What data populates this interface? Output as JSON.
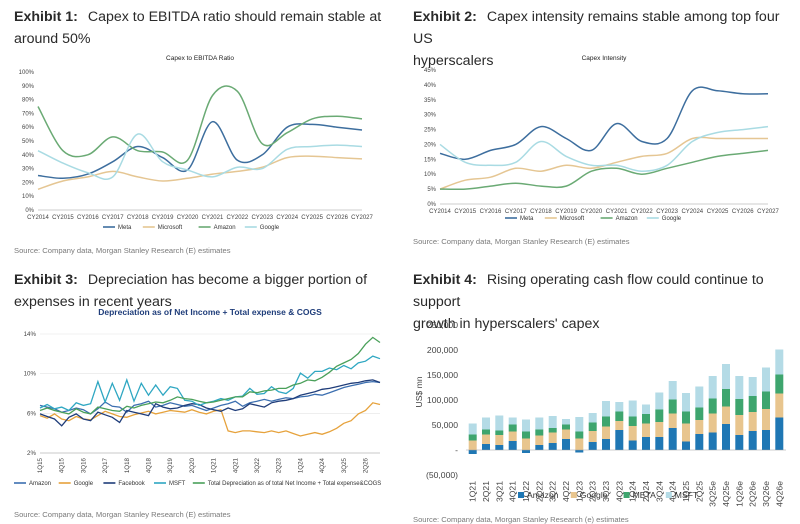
{
  "exhibits": [
    {
      "label": "Exhibit 1:",
      "title_line1": "Capex to EBITDA ratio should remain stable at",
      "title_line2": "around 50%",
      "source": "Source: Company data, Morgan Stanley Research (E) estimates"
    },
    {
      "label": "Exhibit 2:",
      "title_line1": "Capex intensity remains stable among top four US",
      "title_line2": "hyperscalers",
      "source": "Source: Company data, Morgan Stanley Research (E) estimates"
    },
    {
      "label": "Exhibit 3:",
      "title_line1": "Depreciation has become a bigger portion of",
      "title_line2": "expenses in recent years",
      "source": "Source: Company data, Morgan Stanley Research (E) estimates"
    },
    {
      "label": "Exhibit 4:",
      "title_line1": "Rising operating cash flow could continue to support",
      "title_line2": "growth in hyperscalers' capex",
      "source": "Source: Company data, Morgan Stanley Research (e) estimates"
    }
  ],
  "chart_data": [
    {
      "type": "line",
      "title": "Capex to EBITDA Ratio",
      "categories": [
        "CY2014",
        "CY2015",
        "CY2016",
        "CY2017",
        "CY2018",
        "CY2019",
        "CY2020",
        "CY2021",
        "CY2022",
        "CY2023",
        "CY2024",
        "CY2025",
        "CY2026",
        "CY2027"
      ],
      "y_ticks": [
        "0%",
        "10%",
        "20%",
        "30%",
        "40%",
        "50%",
        "60%",
        "70%",
        "80%",
        "90%",
        "100%"
      ],
      "ylim": [
        0,
        100
      ],
      "series": [
        {
          "name": "Meta",
          "color": "#3d6e9e",
          "values": [
            25,
            23,
            26,
            35,
            46,
            38,
            29,
            64,
            36,
            40,
            60,
            62,
            60,
            58
          ]
        },
        {
          "name": "Microsoft",
          "color": "#e5c693",
          "values": [
            15,
            21,
            24,
            28,
            24,
            21,
            23,
            26,
            28,
            31,
            38,
            39,
            38,
            37
          ]
        },
        {
          "name": "Amazon",
          "color": "#6aaa74",
          "values": [
            75,
            43,
            40,
            53,
            43,
            42,
            36,
            83,
            86,
            48,
            56,
            66,
            68,
            66
          ]
        },
        {
          "name": "Google",
          "color": "#a9dbe3",
          "values": [
            43,
            34,
            27,
            24,
            55,
            35,
            29,
            24,
            31,
            30,
            44,
            46,
            47,
            46
          ]
        }
      ]
    },
    {
      "type": "line",
      "title": "Capex Intensity",
      "categories": [
        "CY2014",
        "CY2015",
        "CY2016",
        "CY2017",
        "CY2018",
        "CY2019",
        "CY2020",
        "CY2021",
        "CY2022",
        "CY2023",
        "CY2024",
        "CY2025",
        "CY2026",
        "CY2027"
      ],
      "y_ticks": [
        "0%",
        "5%",
        "10%",
        "15%",
        "20%",
        "25%",
        "30%",
        "35%",
        "40%",
        "45%"
      ],
      "ylim": [
        0,
        45
      ],
      "series": [
        {
          "name": "Meta",
          "color": "#3d6e9e",
          "values": [
            17,
            15,
            18,
            20,
            26,
            22,
            18,
            27,
            21,
            22,
            38,
            38,
            37,
            37
          ]
        },
        {
          "name": "Microsoft",
          "color": "#e5c693",
          "values": [
            5,
            8,
            9,
            12,
            11,
            13,
            12,
            14,
            16,
            17,
            22,
            22,
            22,
            22
          ]
        },
        {
          "name": "Amazon",
          "color": "#6aaa74",
          "values": [
            5,
            5,
            6,
            7,
            6,
            6,
            11,
            12,
            10,
            12,
            14,
            16,
            17,
            18
          ]
        },
        {
          "name": "Google",
          "color": "#a9dbe3",
          "values": [
            20,
            14,
            13,
            14,
            21,
            16,
            13,
            13,
            11,
            13,
            21,
            24,
            25,
            26
          ]
        }
      ]
    },
    {
      "type": "line",
      "title": "Depreciation as of Net Income + Total expense & COGS",
      "categories": [
        "1Q15",
        "2Q15",
        "3Q15",
        "4Q15",
        "1Q16",
        "2Q16",
        "3Q16",
        "4Q16",
        "1Q17",
        "2Q17",
        "3Q17",
        "4Q17",
        "1Q18",
        "2Q18",
        "3Q18",
        "4Q18",
        "1Q19",
        "2Q19",
        "3Q19",
        "4Q19",
        "1Q20",
        "2Q20",
        "3Q20",
        "4Q20",
        "1Q21",
        "2Q21",
        "3Q21",
        "4Q21",
        "1Q22",
        "2Q22",
        "3Q22",
        "4Q22",
        "1Q23",
        "2Q23",
        "3Q23",
        "4Q23",
        "1Q24",
        "2Q24",
        "3Q24",
        "4Q24",
        "1Q25",
        "2Q25",
        "3Q25",
        "4Q25",
        "1Q26",
        "2Q26",
        "3Q26",
        "4Q26"
      ],
      "x_tick_labels": [
        "1Q15",
        "4Q15",
        "3Q16",
        "2Q17",
        "1Q18",
        "4Q18",
        "3Q19",
        "2Q20",
        "1Q21",
        "4Q21",
        "3Q22",
        "2Q23",
        "1Q24",
        "4Q24",
        "3Q25",
        "2Q26"
      ],
      "y_ticks": [
        "2%",
        "6%",
        "10%",
        "14%"
      ],
      "ylim": [
        2,
        16
      ],
      "series": [
        {
          "name": "Amazon",
          "color": "#3c6fb0",
          "values": [
            7.6,
            7.4,
            7.2,
            6.8,
            7.0,
            7.3,
            7.1,
            6.6,
            7.2,
            8.0,
            7.5,
            7.4,
            6.8,
            7.6,
            7.8,
            8.1,
            7.4,
            7.6,
            7.9,
            7.7,
            7.5,
            7.6,
            7.3,
            7.0,
            7.3,
            7.6,
            7.8,
            8.1,
            7.5,
            7.9,
            8.1,
            8.3,
            8.1,
            8.3,
            8.5,
            8.4,
            8.6,
            8.7,
            8.9,
            8.8,
            9.1,
            9.4,
            9.7,
            9.9,
            10.1,
            10.3,
            10.4,
            10.3
          ]
        },
        {
          "name": "Google",
          "color": "#e6a23c",
          "values": [
            6.4,
            6.1,
            6.6,
            6.0,
            5.8,
            6.3,
            6.0,
            5.9,
            6.4,
            6.9,
            6.6,
            6.3,
            6.2,
            6.5,
            6.7,
            6.9,
            6.6,
            6.8,
            7.0,
            6.9,
            6.8,
            7.1,
            6.8,
            6.6,
            6.9,
            7.1,
            4.6,
            4.4,
            4.6,
            4.6,
            4.5,
            4.4,
            4.6,
            4.4,
            4.6,
            4.3,
            4.0,
            4.2,
            4.4,
            4.2,
            4.5,
            4.9,
            5.5,
            5.8,
            6.6,
            7.0,
            7.9,
            7.7
          ]
        },
        {
          "name": "Facebook",
          "color": "#1f3d7a",
          "values": [
            6.6,
            6.3,
            6.0,
            5.2,
            6.2,
            6.6,
            6.0,
            5.8,
            6.8,
            6.5,
            6.2,
            5.6,
            7.0,
            6.8,
            6.6,
            6.4,
            7.8,
            7.4,
            7.2,
            7.3,
            7.6,
            7.8,
            7.7,
            7.3,
            7.1,
            6.9,
            7.3,
            7.0,
            7.2,
            7.8,
            7.6,
            7.4,
            7.9,
            8.1,
            8.2,
            8.4,
            8.8,
            9.0,
            9.2,
            9.5,
            9.6,
            9.8,
            10.0,
            10.2,
            10.3,
            10.5,
            10.6,
            10.3
          ]
        },
        {
          "name": "MSFT",
          "color": "#2fa7c2",
          "values": [
            7.3,
            7.7,
            7.2,
            7.4,
            7.0,
            7.9,
            7.6,
            7.8,
            10.4,
            8.0,
            10.2,
            8.2,
            10.6,
            8.1,
            10.2,
            8.8,
            10.0,
            8.8,
            9.8,
            9.6,
            8.2,
            8.1,
            7.6,
            7.9,
            8.1,
            8.4,
            8.2,
            8.6,
            8.7,
            9.6,
            8.9,
            9.0,
            9.8,
            9.2,
            9.0,
            9.6,
            11.4,
            10.8,
            11.6,
            11.6,
            12.0,
            11.8,
            12.3,
            11.9,
            12.6,
            12.8,
            13.4,
            13.1
          ]
        },
        {
          "name": "Total Depreciation as of total Net Income + Total expense&COGS",
          "color": "#4aa05a",
          "values": [
            7.0,
            7.3,
            7.0,
            6.8,
            6.6,
            7.2,
            6.8,
            6.6,
            7.4,
            7.2,
            7.0,
            6.9,
            7.5,
            7.3,
            7.6,
            7.8,
            8.0,
            7.9,
            8.2,
            8.6,
            8.4,
            8.3,
            8.1,
            7.9,
            8.0,
            8.2,
            8.4,
            8.6,
            8.6,
            9.2,
            9.1,
            9.3,
            9.4,
            9.6,
            9.6,
            10.0,
            10.2,
            10.6,
            10.5,
            10.9,
            11.5,
            12.2,
            12.6,
            13.0,
            13.7,
            14.8,
            15.6,
            15.0
          ]
        }
      ]
    },
    {
      "type": "bar",
      "stacked": true,
      "categories": [
        "1Q21",
        "2Q21",
        "3Q21",
        "4Q21",
        "1Q22",
        "2Q22",
        "3Q22",
        "4Q22",
        "1Q23",
        "2Q23",
        "3Q23",
        "4Q23",
        "1Q24",
        "2Q24",
        "3Q24",
        "4Q24",
        "1Q25",
        "2Q25",
        "3Q25e",
        "4Q25e",
        "1Q26e",
        "2Q26e",
        "3Q26e",
        "4Q26e"
      ],
      "x_tick_labels": [
        "1Q21",
        "2Q21",
        "3Q21",
        "4Q21",
        "1Q22",
        "2Q22",
        "3Q22",
        "4Q22",
        "1Q23",
        "2Q23",
        "3Q23",
        "4Q23",
        "1Q24",
        "2Q24",
        "3Q24",
        "4Q24",
        "1Q25",
        "2Q25",
        "3Q25e",
        "4Q25e",
        "1Q26e",
        "2Q26e",
        "3Q26e",
        "4Q26e"
      ],
      "y_ticks": [
        "(50,000)",
        "-",
        "50,000",
        "100,000",
        "150,000",
        "200,000",
        "250,000"
      ],
      "ylim": [
        -50000,
        250000
      ],
      "ylabel": "US$ mn",
      "series": [
        {
          "name": "Amazon",
          "color": "#1f77b4",
          "values": [
            -8000,
            12000,
            10000,
            18000,
            -6000,
            10000,
            14000,
            22000,
            -5000,
            16000,
            22000,
            40000,
            19000,
            26000,
            26000,
            44000,
            17000,
            32000,
            35000,
            52000,
            30000,
            38000,
            40000,
            65000
          ]
        },
        {
          "name": "Google",
          "color": "#e8c58e",
          "values": [
            19000,
            19000,
            20000,
            19000,
            23000,
            19000,
            21000,
            19000,
            23000,
            22000,
            25000,
            18000,
            29000,
            27000,
            30000,
            29000,
            36000,
            28000,
            38000,
            35000,
            40000,
            38000,
            42000,
            48000
          ]
        },
        {
          "name": "META",
          "color": "#3ea56e",
          "values": [
            12000,
            10000,
            9000,
            14000,
            14000,
            12000,
            9000,
            10000,
            14000,
            17000,
            20000,
            19000,
            19000,
            19000,
            25000,
            28000,
            24000,
            25000,
            30000,
            35000,
            32000,
            32000,
            35000,
            38000
          ]
        },
        {
          "name": "MSFT",
          "color": "#b4dbe6",
          "values": [
            22000,
            24000,
            30000,
            14000,
            24000,
            24000,
            24000,
            11000,
            29000,
            19000,
            31000,
            19000,
            32000,
            19000,
            34000,
            37000,
            37000,
            42000,
            45000,
            50000,
            46000,
            38000,
            48000,
            50000
          ]
        }
      ]
    }
  ]
}
